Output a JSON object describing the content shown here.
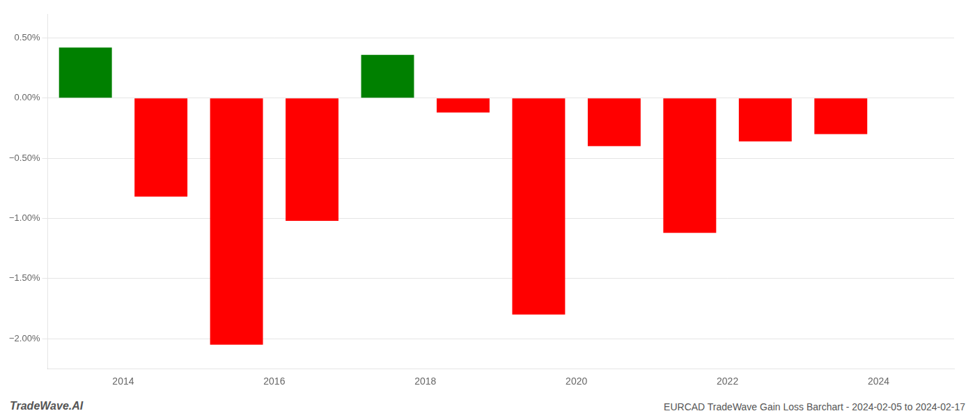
{
  "chart_data": {
    "type": "bar",
    "x": [
      2013.5,
      2014.5,
      2015.5,
      2016.5,
      2017.5,
      2018.5,
      2019.5,
      2020.5,
      2021.5,
      2022.5,
      2023.5
    ],
    "values": [
      0.42,
      -0.82,
      -2.05,
      -1.02,
      0.36,
      -0.12,
      -1.8,
      -0.4,
      -1.12,
      -0.36,
      -0.3
    ],
    "colors": [
      "#008000",
      "#ff0000",
      "#ff0000",
      "#ff0000",
      "#008000",
      "#ff0000",
      "#ff0000",
      "#ff0000",
      "#ff0000",
      "#ff0000",
      "#ff0000"
    ],
    "xlim": [
      2013.0,
      2025.0
    ],
    "xticks": [
      2014,
      2016,
      2018,
      2020,
      2022,
      2024
    ],
    "ylim": [
      -2.25,
      0.7
    ],
    "yticks": [
      {
        "value": 0.5,
        "label": "0.50%"
      },
      {
        "value": 0.0,
        "label": "0.00%"
      },
      {
        "value": -0.5,
        "label": "−0.50%"
      },
      {
        "value": -1.0,
        "label": "−1.00%"
      },
      {
        "value": -1.5,
        "label": "−1.50%"
      },
      {
        "value": -2.0,
        "label": "−2.00%"
      }
    ],
    "grid": "y",
    "annotations": [
      "TradeWave.AI",
      "EURCAD TradeWave Gain Loss Barchart - 2024-02-05 to 2024-02-17"
    ]
  }
}
